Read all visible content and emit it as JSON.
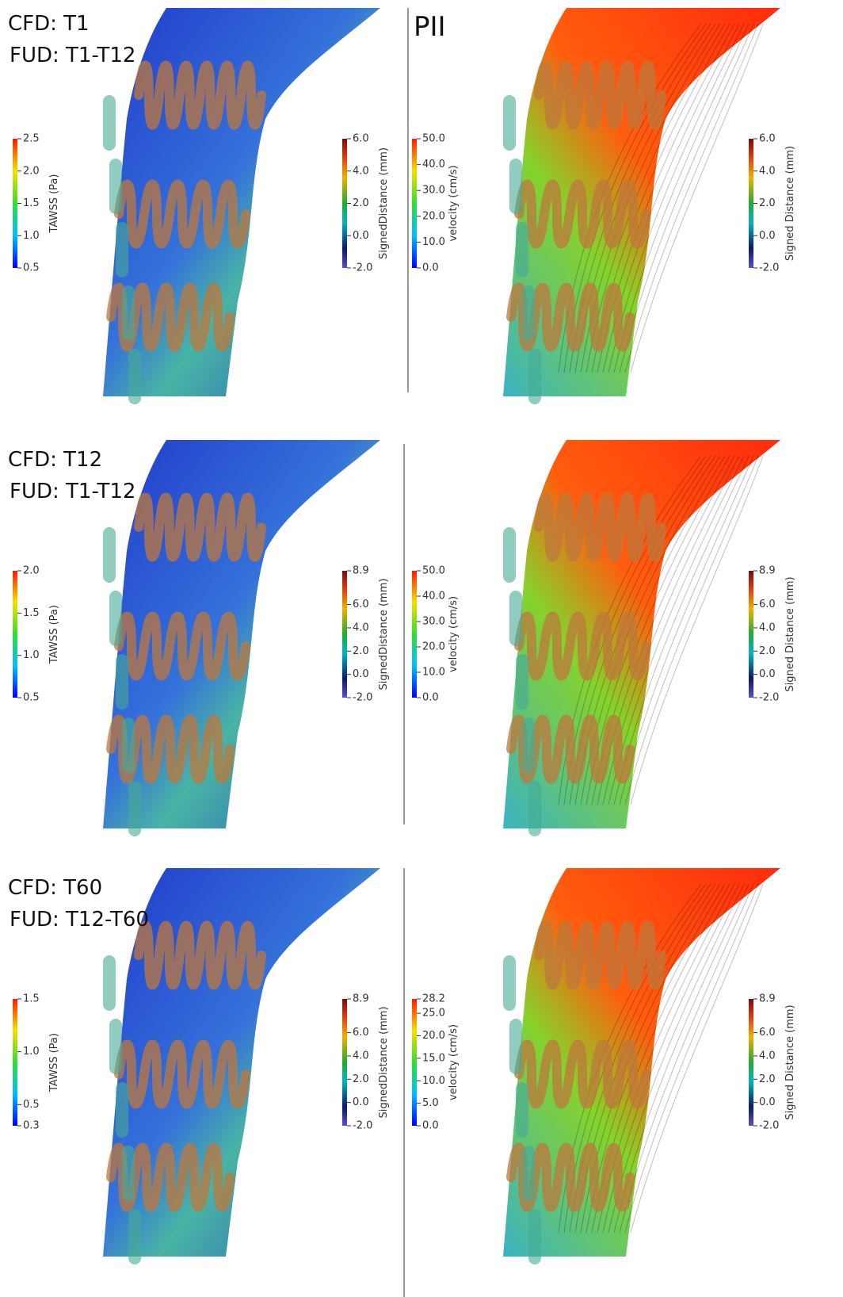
{
  "rows": [
    {
      "cfd": "CFD: T1",
      "fud": "FUD:  T1-T12",
      "pii": "PII",
      "tawss": {
        "title": "TAWSS (Pa)",
        "ticks": [
          "2.5",
          "2.0",
          "1.5",
          "1.0",
          "0.5"
        ]
      },
      "signed_distance_left": {
        "title": "SignedDistance (mm)",
        "ticks": [
          "6.0",
          "4.0",
          "2.0",
          "0.0",
          "-2.0"
        ]
      },
      "velocity": {
        "title": "velocity (cm/s)",
        "ticks": [
          "50.0",
          "40.0",
          "30.0",
          "20.0",
          "10.0",
          "0.0"
        ]
      },
      "signed_distance_right": {
        "title": "Signed Distance (mm)",
        "ticks": [
          "6.0",
          "4.0",
          "2.0",
          "0.0",
          "-2.0"
        ]
      }
    },
    {
      "cfd": "CFD: T12",
      "fud": "FUD:  T1-T12",
      "tawss": {
        "title": "TAWSS (Pa)",
        "ticks": [
          "2.0",
          "1.5",
          "1.0",
          "0.5"
        ]
      },
      "signed_distance_left": {
        "title": "SignedDistance (mm)",
        "ticks": [
          "8.9",
          "6.0",
          "4.0",
          "2.0",
          "0.0",
          "-2.0"
        ]
      },
      "velocity": {
        "title": "velocity (cm/s)",
        "ticks": [
          "50.0",
          "40.0",
          "30.0",
          "20.0",
          "10.0",
          "0.0"
        ]
      },
      "signed_distance_right": {
        "title": "Signed Distance (mm)",
        "ticks": [
          "8.9",
          "6.0",
          "4.0",
          "2.0",
          "0.0",
          "-2.0"
        ]
      }
    },
    {
      "cfd": "CFD: T60",
      "fud": "FUD: T12-T60",
      "tawss": {
        "title": "TAWSS (Pa)",
        "ticks": [
          "1.5",
          "1.0",
          "0.5",
          "0.3"
        ]
      },
      "signed_distance_left": {
        "title": "SignedDistance (mm)",
        "ticks": [
          "8.9",
          "6.0",
          "4.0",
          "2.0",
          "0.0",
          "-2.0"
        ]
      },
      "velocity": {
        "title": "velocity (cm/s)",
        "ticks": [
          "28.2",
          "25.0",
          "20.0",
          "15.0",
          "10.0",
          "5.0",
          "0.0"
        ]
      },
      "signed_distance_right": {
        "title": "Signed Distance (mm)",
        "ticks": [
          "8.9",
          "6.0",
          "4.0",
          "2.0",
          "0.0",
          "-2.0"
        ]
      }
    }
  ]
}
